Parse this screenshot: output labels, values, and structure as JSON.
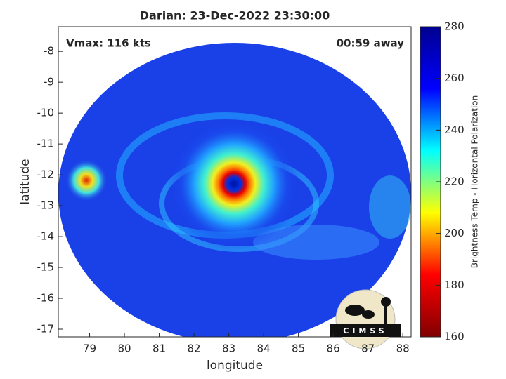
{
  "chart_data": {
    "type": "image",
    "title": "Darian: 23-Dec-2022 23:30:00",
    "annotations": [
      "Vmax: 116 kts",
      "00:59 away"
    ],
    "xlabel": "longitude",
    "ylabel": "latitude",
    "xlim": [
      78.1,
      88.24
    ],
    "xticks": [
      79,
      80,
      81,
      82,
      83,
      84,
      85,
      86,
      87,
      88
    ],
    "ylim": [
      -17.25,
      -7.2
    ],
    "yticks": [
      -17,
      -16,
      -15,
      -14,
      -13,
      -12,
      -11,
      -10,
      -9,
      -8
    ],
    "colorbar": {
      "label": "Brightness Temp - Horizontal Polarization",
      "lim": [
        160,
        280
      ],
      "ticks": [
        160,
        180,
        200,
        220,
        240,
        260,
        280
      ],
      "colors": [
        "#800000",
        "#ff0000",
        "#ffff00",
        "#00ffff",
        "#0000ff",
        "#00008f"
      ]
    },
    "logo": "CIMSS"
  }
}
